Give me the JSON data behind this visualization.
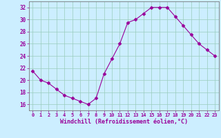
{
  "x": [
    0,
    1,
    2,
    3,
    4,
    5,
    6,
    7,
    8,
    9,
    10,
    11,
    12,
    13,
    14,
    15,
    16,
    17,
    18,
    19,
    20,
    21,
    22,
    23
  ],
  "y": [
    21.5,
    20.0,
    19.5,
    18.5,
    17.5,
    17.0,
    16.5,
    16.0,
    17.0,
    21.0,
    23.5,
    26.0,
    29.5,
    30.0,
    31.0,
    32.0,
    32.0,
    32.0,
    30.5,
    29.0,
    27.5,
    26.0,
    25.0,
    24.0
  ],
  "xlim": [
    -0.5,
    23.5
  ],
  "ylim": [
    15.0,
    33.0
  ],
  "yticks": [
    16,
    18,
    20,
    22,
    24,
    26,
    28,
    30,
    32
  ],
  "xticks": [
    0,
    1,
    2,
    3,
    4,
    5,
    6,
    7,
    8,
    9,
    10,
    11,
    12,
    13,
    14,
    15,
    16,
    17,
    18,
    19,
    20,
    21,
    22,
    23
  ],
  "xlabel": "Windchill (Refroidissement éolien,°C)",
  "line_color": "#990099",
  "marker": "D",
  "marker_size": 2.5,
  "background_color": "#cceeff",
  "grid_color": "#99ccbb",
  "axes_bg": "#cceeff"
}
